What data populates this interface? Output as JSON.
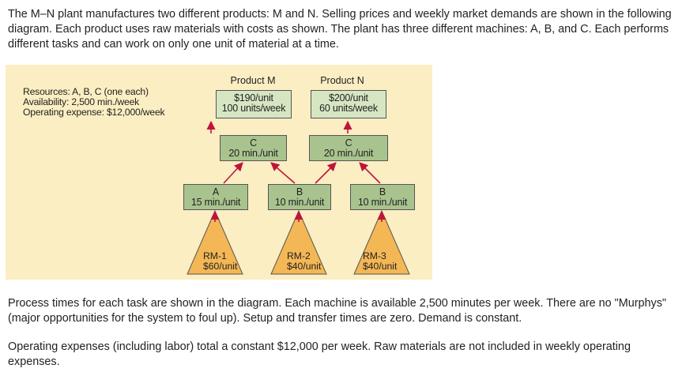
{
  "intro_text": "The M–N plant manufactures two different products: M and N. Selling prices and weekly market demands are shown in the following diagram. Each product uses raw materials with costs as shown. The plant has three different machines: A, B, and C. Each performs different tasks and can work on only one unit of material at a time.",
  "diagram": {
    "resources": {
      "line1": "Resources: A, B, C (one each)",
      "line2": "Availability: 2,500 min./week",
      "line3": "Operating expense: $12,000/week"
    },
    "product_m": {
      "title": "Product M",
      "price": "$190/unit",
      "demand": "100 units/week"
    },
    "product_n": {
      "title": "Product N",
      "price": "$200/unit",
      "demand": "60 units/week"
    },
    "c_m": {
      "machine": "C",
      "time": "20 min./unit"
    },
    "c_n": {
      "machine": "C",
      "time": "20 min./unit"
    },
    "a": {
      "machine": "A",
      "time": "15 min./unit"
    },
    "b_mid": {
      "machine": "B",
      "time": "10 min./unit"
    },
    "b_right": {
      "machine": "B",
      "time": "10 min./unit"
    },
    "rm1": {
      "name": "RM-1",
      "cost": "$60/unit"
    },
    "rm2": {
      "name": "RM-2",
      "cost": "$40/unit"
    },
    "rm3": {
      "name": "RM-3",
      "cost": "$40/unit"
    },
    "colors": {
      "background": "#fbeec2",
      "info_box": "#d6e6c2",
      "machine_box": "#a9c38e",
      "triangle": "#f4b755",
      "arrow": "#c0143c"
    }
  },
  "process_text": "Process times for each task are shown in the diagram. Each machine is available 2,500 minutes per week. There are no \"Murphys\" (major opportunities for the system to foul up). Setup and transfer times are zero. Demand is constant.",
  "expense_text": "Operating expenses (including labor) total a constant $12,000 per week. Raw materials are not included in weekly operating expenses."
}
